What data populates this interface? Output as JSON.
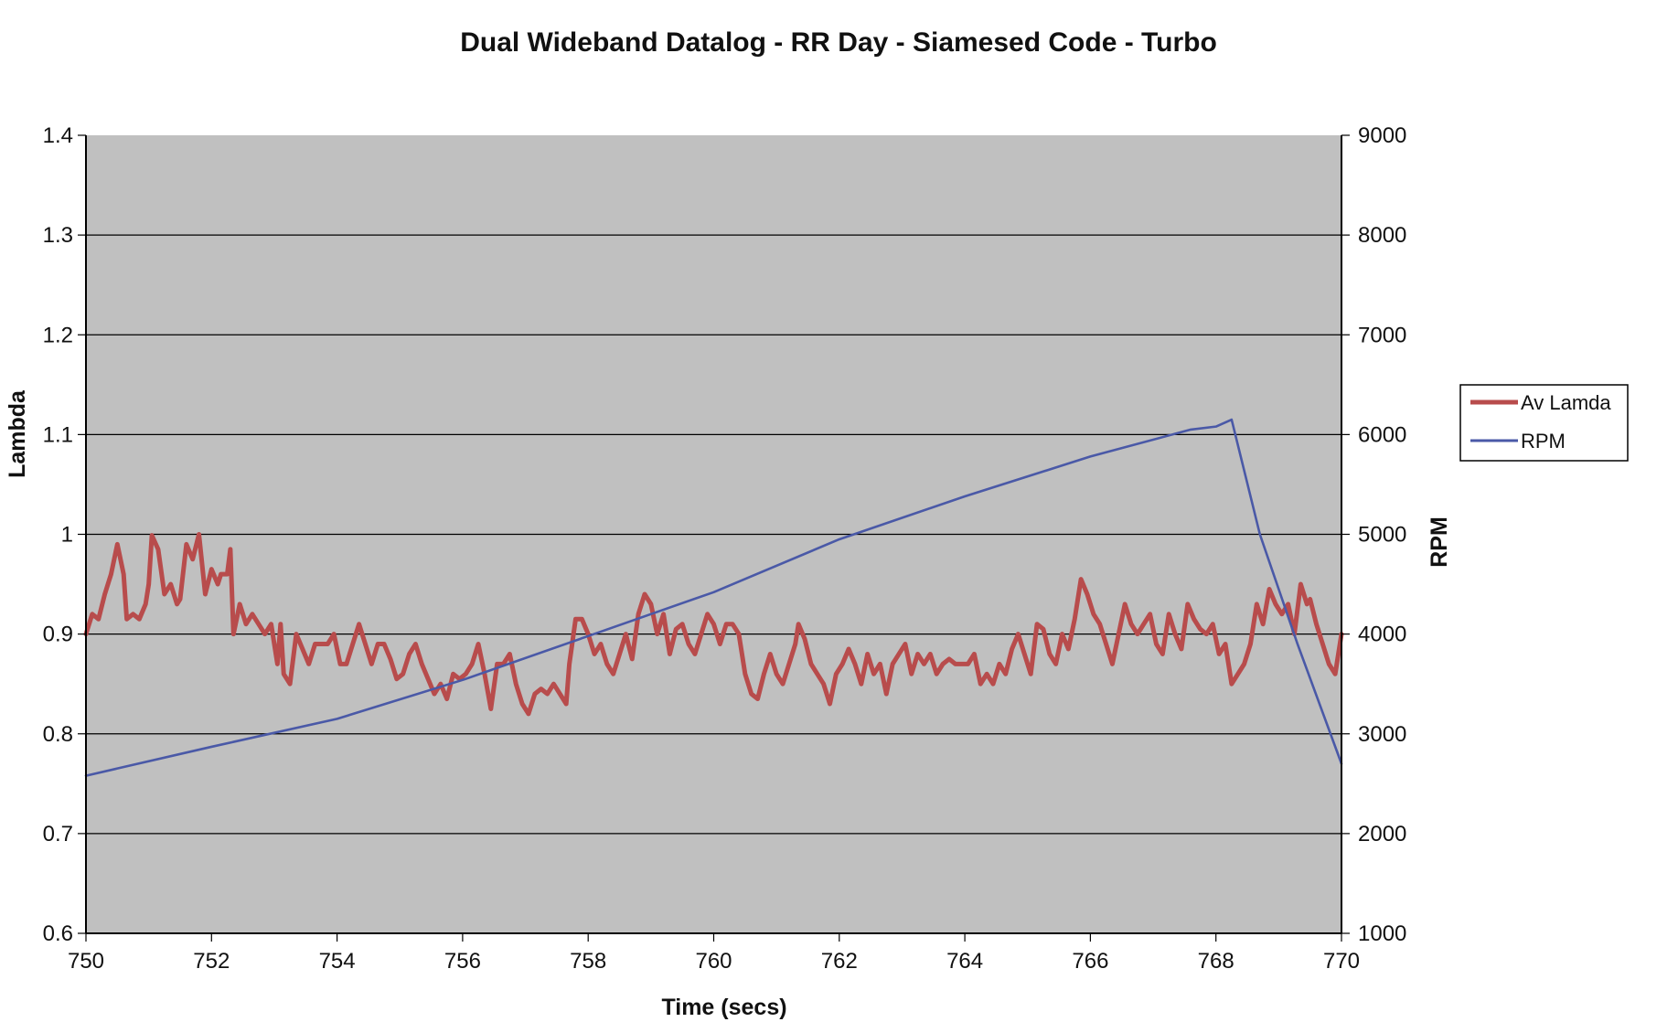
{
  "chart_data": {
    "type": "line",
    "title": "Dual Wideband Datalog - RR Day - Siamesed Code - Turbo",
    "xlabel": "Time (secs)",
    "ylabel_left": "Lambda",
    "ylabel_right": "RPM",
    "xlim": [
      750,
      770
    ],
    "ylim_left": [
      0.6,
      1.4
    ],
    "ylim_right": [
      1000,
      9000
    ],
    "x_ticks": [
      "750",
      "752",
      "754",
      "756",
      "758",
      "760",
      "762",
      "764",
      "766",
      "768",
      "770"
    ],
    "y_left_ticks": [
      "0.6",
      "0.7",
      "0.8",
      "0.9",
      "1",
      "1.1",
      "1.2",
      "1.3",
      "1.4"
    ],
    "y_right_ticks": [
      "1000",
      "2000",
      "3000",
      "4000",
      "5000",
      "6000",
      "7000",
      "8000",
      "9000"
    ],
    "grid": true,
    "legend_position": "right",
    "plot_background": "#c0c0c0",
    "series": [
      {
        "name": "Av Lamda",
        "axis": "left",
        "color": "#b84c4c",
        "points": [
          [
            750.0,
            0.9
          ],
          [
            750.1,
            0.92
          ],
          [
            750.2,
            0.915
          ],
          [
            750.3,
            0.94
          ],
          [
            750.4,
            0.96
          ],
          [
            750.5,
            0.99
          ],
          [
            750.6,
            0.96
          ],
          [
            750.65,
            0.915
          ],
          [
            750.75,
            0.92
          ],
          [
            750.85,
            0.915
          ],
          [
            750.95,
            0.93
          ],
          [
            751.0,
            0.95
          ],
          [
            751.05,
            0.999
          ],
          [
            751.15,
            0.985
          ],
          [
            751.25,
            0.94
          ],
          [
            751.35,
            0.95
          ],
          [
            751.45,
            0.93
          ],
          [
            751.5,
            0.935
          ],
          [
            751.6,
            0.99
          ],
          [
            751.7,
            0.975
          ],
          [
            751.8,
            1.0
          ],
          [
            751.9,
            0.94
          ],
          [
            752.0,
            0.965
          ],
          [
            752.1,
            0.95
          ],
          [
            752.15,
            0.96
          ],
          [
            752.25,
            0.96
          ],
          [
            752.3,
            0.985
          ],
          [
            752.35,
            0.9
          ],
          [
            752.45,
            0.93
          ],
          [
            752.55,
            0.91
          ],
          [
            752.65,
            0.92
          ],
          [
            752.75,
            0.91
          ],
          [
            752.85,
            0.9
          ],
          [
            752.95,
            0.91
          ],
          [
            753.05,
            0.87
          ],
          [
            753.1,
            0.91
          ],
          [
            753.15,
            0.86
          ],
          [
            753.25,
            0.85
          ],
          [
            753.35,
            0.9
          ],
          [
            753.45,
            0.885
          ],
          [
            753.55,
            0.87
          ],
          [
            753.65,
            0.89
          ],
          [
            753.75,
            0.89
          ],
          [
            753.85,
            0.89
          ],
          [
            753.95,
            0.9
          ],
          [
            754.05,
            0.87
          ],
          [
            754.15,
            0.87
          ],
          [
            754.25,
            0.89
          ],
          [
            754.35,
            0.91
          ],
          [
            754.45,
            0.89
          ],
          [
            754.55,
            0.87
          ],
          [
            754.65,
            0.89
          ],
          [
            754.75,
            0.89
          ],
          [
            754.85,
            0.875
          ],
          [
            754.95,
            0.855
          ],
          [
            755.05,
            0.86
          ],
          [
            755.15,
            0.88
          ],
          [
            755.25,
            0.89
          ],
          [
            755.35,
            0.87
          ],
          [
            755.45,
            0.855
          ],
          [
            755.55,
            0.84
          ],
          [
            755.65,
            0.85
          ],
          [
            755.75,
            0.835
          ],
          [
            755.85,
            0.86
          ],
          [
            755.95,
            0.855
          ],
          [
            756.05,
            0.86
          ],
          [
            756.15,
            0.87
          ],
          [
            756.25,
            0.89
          ],
          [
            756.35,
            0.86
          ],
          [
            756.45,
            0.825
          ],
          [
            756.55,
            0.87
          ],
          [
            756.65,
            0.87
          ],
          [
            756.75,
            0.88
          ],
          [
            756.85,
            0.85
          ],
          [
            756.95,
            0.83
          ],
          [
            757.05,
            0.82
          ],
          [
            757.15,
            0.84
          ],
          [
            757.25,
            0.845
          ],
          [
            757.35,
            0.84
          ],
          [
            757.45,
            0.85
          ],
          [
            757.55,
            0.84
          ],
          [
            757.65,
            0.83
          ],
          [
            757.7,
            0.87
          ],
          [
            757.8,
            0.915
          ],
          [
            757.9,
            0.915
          ],
          [
            758.0,
            0.9
          ],
          [
            758.1,
            0.88
          ],
          [
            758.2,
            0.89
          ],
          [
            758.3,
            0.87
          ],
          [
            758.4,
            0.86
          ],
          [
            758.5,
            0.88
          ],
          [
            758.6,
            0.9
          ],
          [
            758.7,
            0.875
          ],
          [
            758.8,
            0.92
          ],
          [
            758.9,
            0.94
          ],
          [
            759.0,
            0.93
          ],
          [
            759.1,
            0.9
          ],
          [
            759.2,
            0.92
          ],
          [
            759.3,
            0.88
          ],
          [
            759.4,
            0.905
          ],
          [
            759.5,
            0.91
          ],
          [
            759.6,
            0.89
          ],
          [
            759.7,
            0.88
          ],
          [
            759.8,
            0.9
          ],
          [
            759.9,
            0.92
          ],
          [
            760.0,
            0.91
          ],
          [
            760.1,
            0.89
          ],
          [
            760.2,
            0.91
          ],
          [
            760.3,
            0.91
          ],
          [
            760.4,
            0.9
          ],
          [
            760.5,
            0.86
          ],
          [
            760.6,
            0.84
          ],
          [
            760.7,
            0.835
          ],
          [
            760.8,
            0.86
          ],
          [
            760.9,
            0.88
          ],
          [
            761.0,
            0.86
          ],
          [
            761.1,
            0.85
          ],
          [
            761.2,
            0.87
          ],
          [
            761.3,
            0.89
          ],
          [
            761.35,
            0.91
          ],
          [
            761.45,
            0.895
          ],
          [
            761.55,
            0.87
          ],
          [
            761.65,
            0.86
          ],
          [
            761.75,
            0.85
          ],
          [
            761.85,
            0.83
          ],
          [
            761.95,
            0.86
          ],
          [
            762.05,
            0.87
          ],
          [
            762.15,
            0.885
          ],
          [
            762.25,
            0.87
          ],
          [
            762.35,
            0.85
          ],
          [
            762.45,
            0.88
          ],
          [
            762.55,
            0.86
          ],
          [
            762.65,
            0.87
          ],
          [
            762.75,
            0.84
          ],
          [
            762.85,
            0.87
          ],
          [
            762.95,
            0.88
          ],
          [
            763.05,
            0.89
          ],
          [
            763.15,
            0.86
          ],
          [
            763.25,
            0.88
          ],
          [
            763.35,
            0.87
          ],
          [
            763.45,
            0.88
          ],
          [
            763.55,
            0.86
          ],
          [
            763.65,
            0.87
          ],
          [
            763.75,
            0.875
          ],
          [
            763.85,
            0.87
          ],
          [
            763.95,
            0.87
          ],
          [
            764.05,
            0.87
          ],
          [
            764.15,
            0.88
          ],
          [
            764.25,
            0.85
          ],
          [
            764.35,
            0.86
          ],
          [
            764.45,
            0.85
          ],
          [
            764.55,
            0.87
          ],
          [
            764.65,
            0.86
          ],
          [
            764.75,
            0.885
          ],
          [
            764.85,
            0.9
          ],
          [
            764.95,
            0.88
          ],
          [
            765.05,
            0.86
          ],
          [
            765.15,
            0.91
          ],
          [
            765.25,
            0.905
          ],
          [
            765.35,
            0.88
          ],
          [
            765.45,
            0.87
          ],
          [
            765.55,
            0.9
          ],
          [
            765.65,
            0.885
          ],
          [
            765.75,
            0.915
          ],
          [
            765.85,
            0.955
          ],
          [
            765.95,
            0.94
          ],
          [
            766.05,
            0.92
          ],
          [
            766.15,
            0.91
          ],
          [
            766.25,
            0.89
          ],
          [
            766.35,
            0.87
          ],
          [
            766.45,
            0.9
          ],
          [
            766.55,
            0.93
          ],
          [
            766.65,
            0.91
          ],
          [
            766.75,
            0.9
          ],
          [
            766.85,
            0.91
          ],
          [
            766.95,
            0.92
          ],
          [
            767.05,
            0.89
          ],
          [
            767.15,
            0.88
          ],
          [
            767.25,
            0.92
          ],
          [
            767.35,
            0.9
          ],
          [
            767.45,
            0.885
          ],
          [
            767.55,
            0.93
          ],
          [
            767.65,
            0.915
          ],
          [
            767.75,
            0.905
          ],
          [
            767.85,
            0.9
          ],
          [
            767.95,
            0.91
          ],
          [
            768.05,
            0.88
          ],
          [
            768.15,
            0.89
          ],
          [
            768.25,
            0.85
          ],
          [
            768.35,
            0.86
          ],
          [
            768.45,
            0.87
          ],
          [
            768.55,
            0.89
          ],
          [
            768.65,
            0.93
          ],
          [
            768.75,
            0.91
          ],
          [
            768.85,
            0.945
          ],
          [
            768.95,
            0.93
          ],
          [
            769.05,
            0.92
          ],
          [
            769.15,
            0.93
          ],
          [
            769.25,
            0.9
          ],
          [
            769.35,
            0.95
          ],
          [
            769.45,
            0.93
          ],
          [
            769.5,
            0.935
          ],
          [
            769.6,
            0.91
          ],
          [
            769.7,
            0.89
          ],
          [
            769.8,
            0.87
          ],
          [
            769.9,
            0.86
          ],
          [
            770.0,
            0.9
          ]
        ]
      },
      {
        "name": "RPM",
        "axis": "right",
        "color": "#4a59a7",
        "points": [
          [
            750.0,
            2580
          ],
          [
            752.0,
            2870
          ],
          [
            754.0,
            3150
          ],
          [
            756.0,
            3540
          ],
          [
            758.0,
            3980
          ],
          [
            760.0,
            4420
          ],
          [
            762.0,
            4950
          ],
          [
            764.0,
            5380
          ],
          [
            766.0,
            5780
          ],
          [
            767.6,
            6050
          ],
          [
            768.0,
            6080
          ],
          [
            768.25,
            6150
          ],
          [
            768.7,
            5000
          ],
          [
            769.3,
            3900
          ],
          [
            770.0,
            2700
          ]
        ]
      }
    ],
    "legend": [
      {
        "label": "Av Lamda",
        "color": "#b84c4c"
      },
      {
        "label": "RPM",
        "color": "#4a59a7"
      }
    ]
  }
}
